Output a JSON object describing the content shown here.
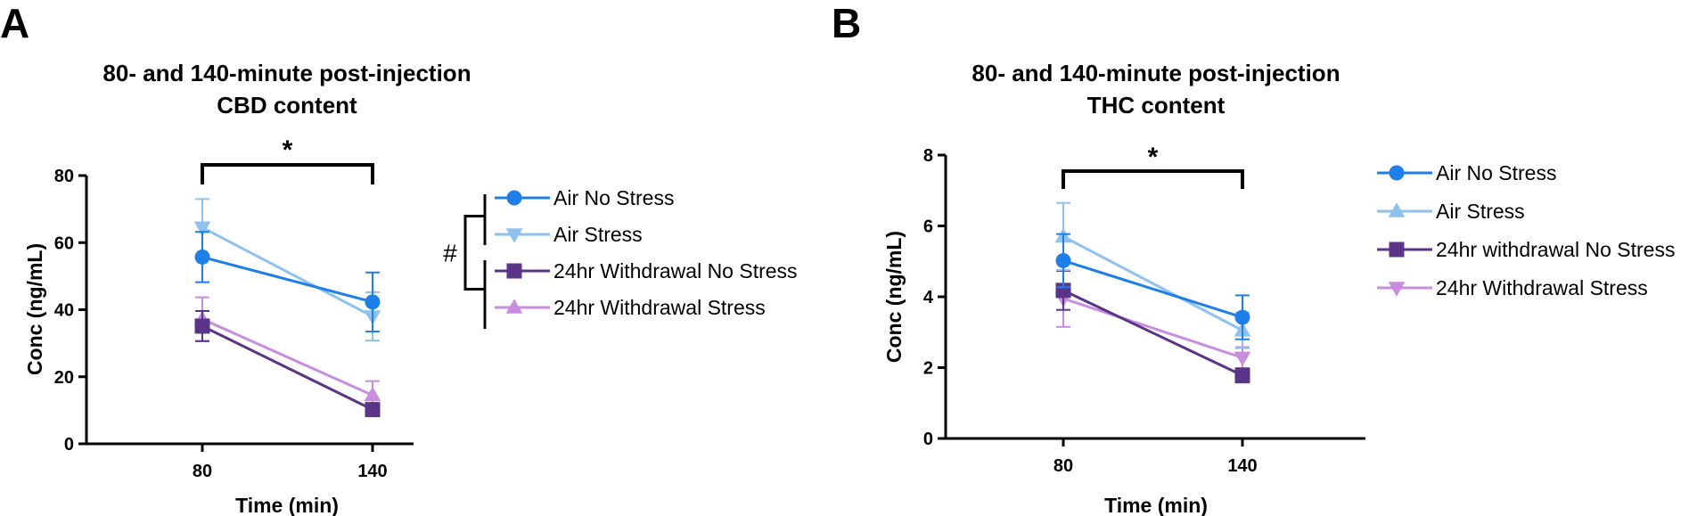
{
  "chart_data": [
    {
      "type": "line",
      "panel_letter": "A",
      "title_lines": [
        "80- and 140-minute post-injection",
        "CBD content"
      ],
      "xlabel": "Time (min)",
      "ylabel": "Conc (ng/mL)",
      "categories": [
        "80",
        "140"
      ],
      "ylim": [
        0,
        80
      ],
      "yticks": [
        0,
        20,
        40,
        60,
        80
      ],
      "series": [
        {
          "name": "Air No Stress",
          "color": "#1f7fe8",
          "marker": "circle",
          "values": [
            55.7,
            42.3
          ],
          "errors": [
            7.5,
            8.8
          ]
        },
        {
          "name": "Air Stress",
          "color": "#8fc1ef",
          "marker": "triangle-down",
          "values": [
            64.5,
            38.0
          ],
          "errors": [
            8.5,
            7.2
          ]
        },
        {
          "name": "24hr Withdrawal No Stress",
          "color": "#5a3487",
          "marker": "square",
          "values": [
            35.1,
            10.2
          ],
          "errors": [
            4.5,
            1.5
          ]
        },
        {
          "name": "24hr Withdrawal Stress",
          "color": "#c98de0",
          "marker": "triangle-up",
          "values": [
            37.2,
            14.5
          ],
          "errors": [
            6.5,
            4.2
          ]
        }
      ],
      "significance": {
        "label": "*",
        "from": "80",
        "to": "140"
      },
      "legend_group_mark": "#",
      "legend_position": "right"
    },
    {
      "type": "line",
      "panel_letter": "B",
      "title_lines": [
        "80- and 140-minute post-injection",
        "THC content"
      ],
      "xlabel": "Time (min)",
      "ylabel": "Conc (ng/mL)",
      "categories": [
        "80",
        "140"
      ],
      "ylim": [
        0,
        8
      ],
      "yticks": [
        0,
        2,
        4,
        6,
        8
      ],
      "series": [
        {
          "name": "Air No Stress",
          "color": "#1f7fe8",
          "marker": "circle",
          "values": [
            5.02,
            3.42
          ],
          "errors": [
            0.75,
            0.62
          ]
        },
        {
          "name": "Air Stress",
          "color": "#8fc1ef",
          "marker": "triangle-up",
          "values": [
            5.7,
            3.05
          ],
          "errors": [
            0.95,
            0.5
          ]
        },
        {
          "name": "24hr withdrawal No Stress",
          "color": "#5a3487",
          "marker": "square",
          "values": [
            4.18,
            1.78
          ],
          "errors": [
            0.55,
            0.2
          ]
        },
        {
          "name": "24hr Withdrawal Stress",
          "color": "#c98de0",
          "marker": "triangle-down",
          "values": [
            3.95,
            2.28
          ],
          "errors": [
            0.8,
            0.3
          ]
        }
      ],
      "significance": {
        "label": "*",
        "from": "80",
        "to": "140"
      },
      "legend_position": "right"
    }
  ]
}
